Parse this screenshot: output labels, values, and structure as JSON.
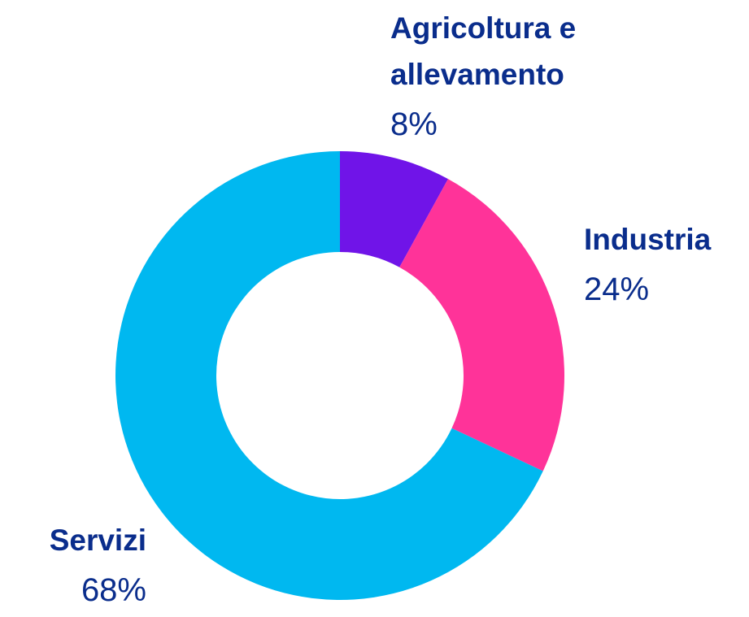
{
  "chart_data": {
    "type": "donut",
    "categories": [
      "Agricoltura e allevamento",
      "Industria",
      "Servizi"
    ],
    "values": [
      8,
      24,
      68
    ],
    "value_labels": [
      "8%",
      "24%",
      "68%"
    ],
    "colors": [
      "#7014e8",
      "#ff3399",
      "#00b8f0"
    ]
  }
}
